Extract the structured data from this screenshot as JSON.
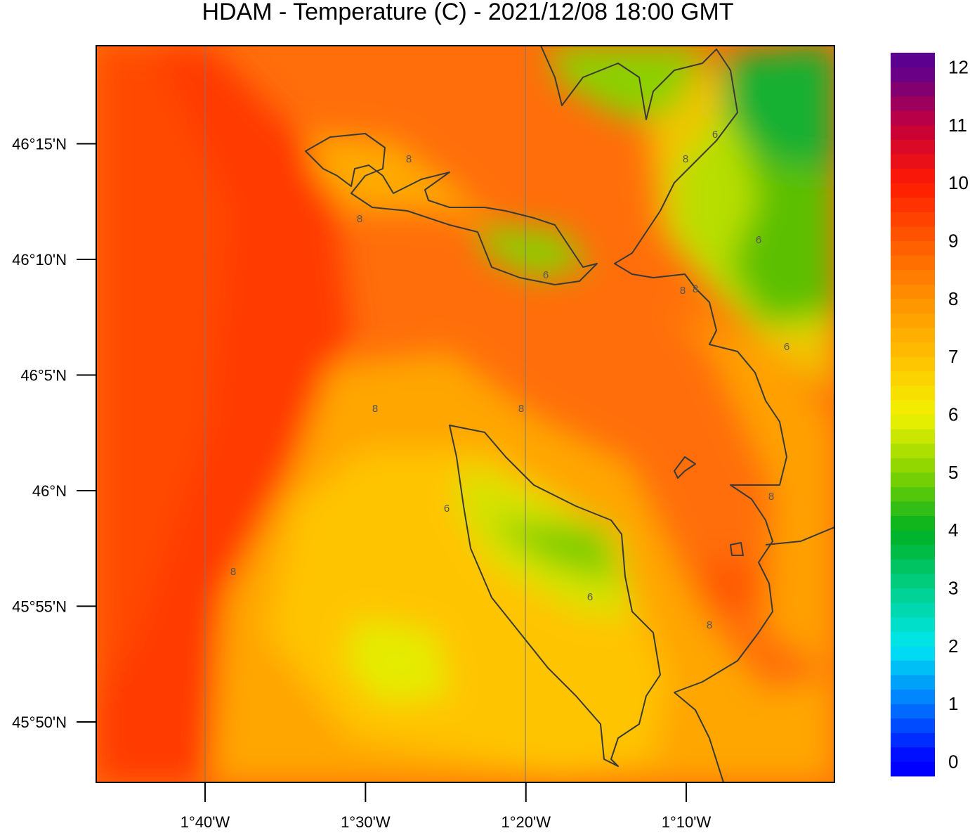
{
  "title": "HDAM - Temperature (C)  -  2021/12/08  18:00 GMT",
  "map": {
    "latlim": [
      45.7897,
      46.3207
    ],
    "lonlim": [
      -1.7798,
      -1.0127
    ],
    "lat_ticks": [
      {
        "value": 46.25,
        "label": "46°15'N"
      },
      {
        "value": 46.1667,
        "label": "46°10'N"
      },
      {
        "value": 46.0833,
        "label": "46°5'N"
      },
      {
        "value": 46.0,
        "label": "46°N"
      },
      {
        "value": 45.9167,
        "label": "45°55'N"
      },
      {
        "value": 45.8333,
        "label": "45°50'N"
      }
    ],
    "lon_ticks": [
      {
        "value": -1.6667,
        "label": "1°40'W"
      },
      {
        "value": -1.5,
        "label": "1°30'W"
      },
      {
        "value": -1.3333,
        "label": "1°20'W"
      },
      {
        "value": -1.1667,
        "label": "1°10'W"
      }
    ],
    "contour_labels": [
      8,
      8,
      6,
      8,
      6,
      6,
      8,
      8,
      6,
      8,
      8,
      6,
      8,
      8,
      6,
      8
    ]
  },
  "colorbar": {
    "lim": [
      -0.25,
      12.25
    ],
    "level_step": 0.25,
    "ticks": [
      0,
      1,
      2,
      3,
      4,
      5,
      6,
      7,
      8,
      9,
      10,
      11,
      12
    ],
    "colors": [
      "#0000ff",
      "#0078ff",
      "#00e8f0",
      "#00d088",
      "#00b020",
      "#84d400",
      "#f2f200",
      "#ffc000",
      "#ff9200",
      "#ff5a00",
      "#ff1a00",
      "#c4003c",
      "#5c0090"
    ]
  }
}
